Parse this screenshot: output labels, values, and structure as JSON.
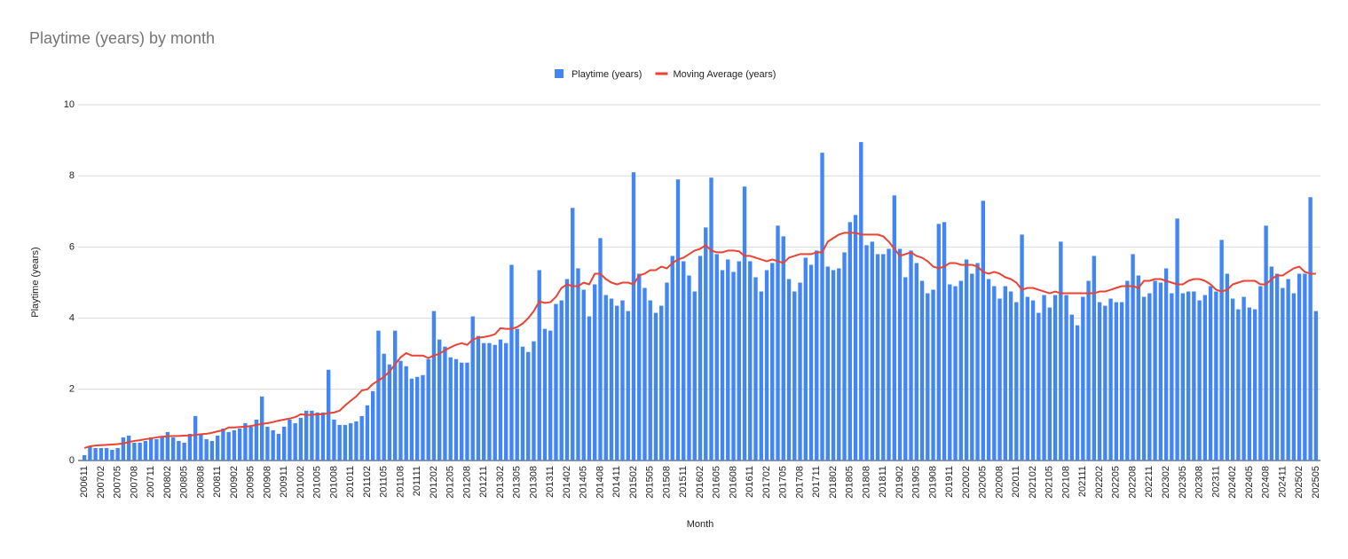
{
  "chart_data": {
    "type": "bar",
    "title": "Playtime (years) by month",
    "x_label": "Month",
    "y_label": "Playtime (years)",
    "categories": [
      "200611",
      null,
      null,
      "200702",
      null,
      null,
      "200705",
      null,
      null,
      "200708",
      null,
      null,
      "200711",
      null,
      null,
      "200802",
      null,
      null,
      "200805",
      null,
      null,
      "200808",
      null,
      null,
      "200811",
      null,
      null,
      "200902",
      null,
      null,
      "200905",
      null,
      null,
      "200908",
      null,
      null,
      "200911",
      null,
      null,
      "201002",
      null,
      null,
      "201005",
      null,
      null,
      "201008",
      null,
      null,
      "201011",
      null,
      null,
      "201102",
      null,
      null,
      "201105",
      null,
      null,
      "201108",
      null,
      null,
      "201111",
      null,
      null,
      "201202",
      null,
      null,
      "201205",
      null,
      null,
      "201208",
      null,
      null,
      "201211",
      null,
      null,
      "201302",
      null,
      null,
      "201305",
      null,
      null,
      "201308",
      null,
      null,
      "201311",
      null,
      null,
      "201402",
      null,
      null,
      "201405",
      null,
      null,
      "201408",
      null,
      null,
      "201411",
      null,
      null,
      "201502",
      null,
      null,
      "201505",
      null,
      null,
      "201508",
      null,
      null,
      "201511",
      null,
      null,
      "201602",
      null,
      null,
      "201605",
      null,
      null,
      "201608",
      null,
      null,
      "201611",
      null,
      null,
      "201702",
      null,
      null,
      "201705",
      null,
      null,
      "201708",
      null,
      null,
      "201711",
      null,
      null,
      "201802",
      null,
      null,
      "201805",
      null,
      null,
      "201808",
      null,
      null,
      "201811",
      null,
      null,
      "201902",
      null,
      null,
      "201905",
      null,
      null,
      "201908",
      null,
      null,
      "201911",
      null,
      null,
      "202002",
      null,
      null,
      "202005",
      null,
      null,
      "202008",
      null,
      null,
      "202011",
      null,
      null,
      "202102",
      null,
      null,
      "202105",
      null,
      null,
      "202108",
      null,
      null,
      "202111",
      null,
      null,
      "202202",
      null,
      null,
      "202205",
      null,
      null,
      "202208",
      null,
      null,
      "202211",
      null,
      null,
      "202302",
      null,
      null,
      "202305",
      null,
      null,
      "202308",
      null,
      null,
      "202311",
      null,
      null,
      "202402",
      null,
      null,
      "202405",
      null,
      null,
      "202408",
      null,
      null,
      "202411",
      null,
      null,
      "202502",
      null,
      null,
      "202505"
    ],
    "series": [
      {
        "name": "Playtime (years)",
        "type": "bar",
        "color": "#4285f4",
        "values": [
          0.15,
          0.4,
          0.35,
          0.35,
          0.35,
          0.3,
          0.35,
          0.65,
          0.7,
          0.5,
          0.5,
          0.55,
          0.65,
          0.6,
          0.65,
          0.8,
          0.65,
          0.55,
          0.5,
          0.75,
          1.25,
          0.75,
          0.6,
          0.55,
          0.7,
          0.9,
          0.8,
          0.85,
          0.9,
          1.05,
          0.95,
          1.15,
          1.8,
          0.95,
          0.85,
          0.75,
          0.95,
          1.15,
          1.05,
          1.2,
          1.4,
          1.4,
          1.35,
          1.35,
          2.55,
          1.15,
          1.0,
          1.0,
          1.05,
          1.1,
          1.25,
          1.55,
          1.95,
          3.65,
          3.0,
          2.7,
          3.65,
          2.8,
          2.65,
          2.3,
          2.35,
          2.4,
          2.85,
          4.2,
          3.4,
          3.2,
          2.9,
          2.85,
          2.75,
          2.75,
          4.05,
          3.5,
          3.3,
          3.3,
          3.25,
          3.4,
          3.3,
          5.5,
          3.7,
          3.2,
          3.05,
          3.35,
          5.35,
          3.7,
          3.65,
          4.4,
          4.5,
          5.1,
          7.1,
          5.4,
          4.8,
          4.05,
          4.95,
          6.25,
          4.65,
          4.55,
          4.35,
          4.5,
          4.2,
          8.1,
          5.25,
          4.85,
          4.5,
          4.15,
          4.35,
          5.0,
          5.75,
          7.9,
          5.6,
          5.2,
          4.75,
          5.75,
          6.55,
          7.95,
          5.8,
          5.35,
          5.65,
          5.3,
          5.6,
          7.7,
          5.6,
          5.15,
          4.75,
          5.35,
          5.55,
          6.6,
          6.3,
          5.1,
          4.75,
          5.0,
          5.7,
          5.5,
          5.9,
          8.65,
          5.45,
          5.35,
          5.4,
          5.85,
          6.7,
          6.9,
          8.95,
          6.05,
          6.15,
          5.8,
          5.8,
          5.95,
          7.45,
          5.95,
          5.15,
          5.9,
          5.55,
          5.05,
          4.7,
          4.8,
          6.65,
          6.7,
          4.95,
          4.9,
          5.05,
          5.65,
          5.25,
          5.55,
          7.3,
          5.1,
          4.9,
          4.55,
          4.9,
          4.75,
          4.45,
          6.35,
          4.6,
          4.5,
          4.15,
          4.65,
          4.3,
          4.65,
          6.15,
          4.65,
          4.1,
          3.8,
          4.6,
          5.05,
          5.75,
          4.45,
          4.35,
          4.55,
          4.45,
          4.45,
          5.05,
          5.8,
          5.2,
          4.6,
          4.7,
          5.05,
          5.0,
          5.4,
          4.7,
          6.8,
          4.7,
          4.75,
          4.75,
          4.5,
          4.65,
          4.9,
          4.75,
          6.2,
          5.25,
          4.55,
          4.25,
          4.6,
          4.3,
          4.25,
          4.9,
          6.6,
          5.45,
          5.25,
          4.85,
          5.1,
          4.7,
          5.25,
          5.25,
          7.4,
          4.2
        ]
      },
      {
        "name": "Moving Average (years)",
        "type": "line",
        "color": "#ea4335",
        "values": [
          0.35,
          0.4,
          0.42,
          0.43,
          0.44,
          0.45,
          0.46,
          0.48,
          0.52,
          0.55,
          0.57,
          0.6,
          0.62,
          0.65,
          0.67,
          0.68,
          0.69,
          0.69,
          0.7,
          0.7,
          0.72,
          0.74,
          0.75,
          0.78,
          0.82,
          0.85,
          0.93,
          0.93,
          0.94,
          0.95,
          0.97,
          1.0,
          1.03,
          1.05,
          1.08,
          1.12,
          1.15,
          1.18,
          1.22,
          1.3,
          1.28,
          1.28,
          1.3,
          1.3,
          1.33,
          1.35,
          1.4,
          1.55,
          1.68,
          1.8,
          1.97,
          2.0,
          2.15,
          2.25,
          2.35,
          2.5,
          2.7,
          2.9,
          3.02,
          2.95,
          2.95,
          2.95,
          2.88,
          2.95,
          3.0,
          3.1,
          3.18,
          3.25,
          3.3,
          3.25,
          3.4,
          3.45,
          3.47,
          3.5,
          3.55,
          3.72,
          3.7,
          3.7,
          3.75,
          3.85,
          4.0,
          4.2,
          4.47,
          4.43,
          4.45,
          4.6,
          4.85,
          4.95,
          4.9,
          4.9,
          5.0,
          4.95,
          5.25,
          5.25,
          5.1,
          5.0,
          4.95,
          5.0,
          5.0,
          4.95,
          5.2,
          5.25,
          5.35,
          5.35,
          5.45,
          5.4,
          5.55,
          5.65,
          5.7,
          5.8,
          5.9,
          5.95,
          6.05,
          5.9,
          5.85,
          5.85,
          5.9,
          5.9,
          5.88,
          5.75,
          5.75,
          5.7,
          5.65,
          5.6,
          5.65,
          5.6,
          5.55,
          5.7,
          5.75,
          5.8,
          5.8,
          5.8,
          5.85,
          5.85,
          6.15,
          6.25,
          6.35,
          6.4,
          6.4,
          6.4,
          6.35,
          6.35,
          6.35,
          6.35,
          6.3,
          6.15,
          5.95,
          5.75,
          5.8,
          5.85,
          5.75,
          5.7,
          5.6,
          5.45,
          5.4,
          5.45,
          5.55,
          5.55,
          5.5,
          5.5,
          5.5,
          5.45,
          5.3,
          5.25,
          5.3,
          5.25,
          5.15,
          5.1,
          5.0,
          4.8,
          4.85,
          4.85,
          4.8,
          4.75,
          4.7,
          4.75,
          4.7,
          4.7,
          4.7,
          4.7,
          4.7,
          4.7,
          4.7,
          4.75,
          4.75,
          4.8,
          4.85,
          4.9,
          4.9,
          4.9,
          4.85,
          5.05,
          5.05,
          5.1,
          5.1,
          5.05,
          5.0,
          4.95,
          4.95,
          5.05,
          5.1,
          5.1,
          5.05,
          4.95,
          4.8,
          4.75,
          4.8,
          4.95,
          5.0,
          5.05,
          5.05,
          5.05,
          4.95,
          4.95,
          5.1,
          5.2,
          5.2,
          5.3,
          5.4,
          5.45,
          5.3,
          5.25,
          5.25
        ]
      }
    ],
    "ylim": [
      0,
      10
    ],
    "yticks": [
      0,
      2,
      4,
      6,
      8,
      10
    ],
    "grid": true,
    "legend": "top"
  }
}
